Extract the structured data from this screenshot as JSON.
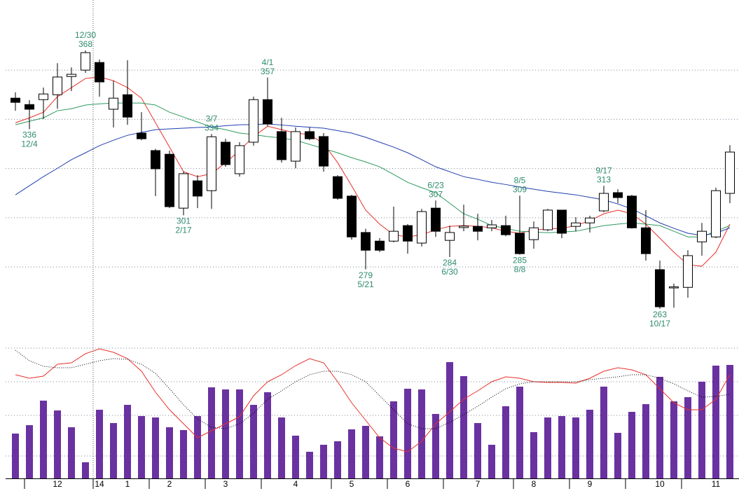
{
  "chart_data": {
    "type": "candlestick",
    "categories": [
      null,
      null,
      null,
      "12",
      null,
      null,
      "14",
      null,
      "1",
      null,
      null,
      "2",
      null,
      null,
      null,
      "3",
      null,
      null,
      null,
      null,
      "4",
      null,
      null,
      null,
      "5",
      null,
      null,
      null,
      "6",
      null,
      null,
      null,
      null,
      "7",
      null,
      null,
      null,
      "8",
      null,
      null,
      null,
      "9",
      null,
      null,
      null,
      null,
      "10",
      null,
      null,
      null,
      "11",
      null
    ],
    "open": [
      348.6,
      346.0,
      348.0,
      350.0,
      357.4,
      360.0,
      363.1,
      344.1,
      350.0,
      334.4,
      327.3,
      325.8,
      303.9,
      315.0,
      311.0,
      330.7,
      317.9,
      330.7,
      348.0,
      335.0,
      323.0,
      335.0,
      333.0,
      316.7,
      308.8,
      294.0,
      290.5,
      290.5,
      296.8,
      289.7,
      303.9,
      290.8,
      296.0,
      296.5,
      295.9,
      296.8,
      293.7,
      291.1,
      295.1,
      303.1,
      296.5,
      297.9,
      302.8,
      310.2,
      308.8,
      295.9,
      278.9,
      271.6,
      271.7,
      290.2,
      292.2,
      309.9
    ],
    "high": [
      351.0,
      347.8,
      352.9,
      362.8,
      361.1,
      368,
      364.3,
      355.7,
      364.0,
      342.9,
      328.0,
      327.3,
      318.7,
      317.3,
      334,
      332.1,
      330.7,
      349.2,
      357,
      340.6,
      336.7,
      336.7,
      334.4,
      317.3,
      309.3,
      295.5,
      291.7,
      304.5,
      297.4,
      303.6,
      307,
      296.8,
      305.3,
      301.6,
      299.1,
      300.8,
      309,
      298.5,
      303.6,
      303.1,
      300.2,
      300.8,
      313,
      311.6,
      309.3,
      303.1,
      282.6,
      273.2,
      286.8,
      297.9,
      312.2,
      329.5
    ],
    "low": [
      343.5,
      336,
      340.1,
      344.3,
      351.5,
      358.9,
      349.2,
      336.7,
      337.8,
      331.5,
      308.8,
      303.9,
      301,
      303.9,
      303.6,
      320.7,
      316.7,
      329.3,
      337.2,
      322.4,
      320.1,
      331.5,
      318.7,
      307.3,
      291.1,
      279,
      286.0,
      290.0,
      285.4,
      288.3,
      292.2,
      284,
      294.5,
      290.8,
      294.5,
      292.5,
      285,
      287.4,
      294.5,
      291.7,
      294.5,
      294.0,
      302.2,
      305.9,
      295.6,
      282.6,
      263,
      263.4,
      267.5,
      284.6,
      291.7,
      305.9
    ],
    "close": [
      346.9,
      344.1,
      350.3,
      357.2,
      358.3,
      367.1,
      355.2,
      348.6,
      340.9,
      332.1,
      319.9,
      304.5,
      317.9,
      308.8,
      332.9,
      321.6,
      329.3,
      348.0,
      338.1,
      323.6,
      335.0,
      332.1,
      321.0,
      307.9,
      292.2,
      286.8,
      286.8,
      294.5,
      290.5,
      302.5,
      294.5,
      294.0,
      296.6,
      294.5,
      297.1,
      293.1,
      285.4,
      295.9,
      303.1,
      293.7,
      297.9,
      299.9,
      309.9,
      308.2,
      295.9,
      285.4,
      263.8,
      271.9,
      284.6,
      294.5,
      311.0,
      326.7
    ],
    "up_color": "#ffffff",
    "down_color": "#000000",
    "ylim": [
      249,
      388.5
    ],
    "yticks": [
      280,
      300,
      320,
      340,
      360
    ],
    "grid": true,
    "moving_averages": [
      {
        "color": "#e8302a",
        "values": [
          338.6,
          340.6,
          342.9,
          349.2,
          352.9,
          356.6,
          357.2,
          355.7,
          352.9,
          348.6,
          338.6,
          328.7,
          318.7,
          316.7,
          317.9,
          322.4,
          327.3,
          333.0,
          337.2,
          335.8,
          334.4,
          333.8,
          330.1,
          322.4,
          313.0,
          303.1,
          297.4,
          293.1,
          292.2,
          293.1,
          295.1,
          296.5,
          296.8,
          296.5,
          295.9,
          294.5,
          293.7,
          295.1,
          295.4,
          295.7,
          296.8,
          298.8,
          301.6,
          303.1,
          301.6,
          297.4,
          291.7,
          286.0,
          280.9,
          280.3,
          286.0,
          297.4
        ]
      },
      {
        "color": "#2e9a5e",
        "values": [
          337.8,
          339.2,
          340.6,
          343.5,
          344.3,
          345.8,
          346.3,
          346.6,
          346.6,
          346.6,
          345.8,
          342.9,
          340.9,
          338.9,
          336.9,
          335.8,
          334.4,
          333.8,
          333.0,
          332.4,
          331.5,
          329.8,
          328.1,
          326.4,
          324.4,
          322.7,
          320.7,
          317.6,
          314.4,
          312.2,
          310.2,
          305.9,
          301.6,
          299.4,
          296.8,
          295.7,
          294.5,
          294.2,
          293.9,
          294.2,
          294.5,
          295.7,
          296.8,
          297.4,
          297.9,
          297.4,
          296.8,
          294.5,
          292.2,
          292.2,
          294.5,
          296.8
        ]
      },
      {
        "color": "#1f3fb0",
        "values": [
          309.3,
          313.0,
          316.7,
          320.1,
          323.6,
          326.4,
          329.3,
          331.5,
          333.5,
          334.7,
          335.8,
          336.1,
          336.4,
          336.7,
          336.9,
          337.4,
          337.8,
          337.9,
          338.1,
          337.7,
          337.2,
          336.8,
          336.4,
          335.4,
          334.4,
          332.7,
          330.7,
          328.7,
          326.4,
          323.6,
          320.7,
          318.7,
          316.7,
          315.6,
          314.4,
          313.5,
          312.5,
          311.6,
          310.7,
          310.0,
          309.3,
          308.3,
          307.3,
          305.6,
          303.6,
          300.8,
          297.9,
          295.7,
          293.7,
          292.8,
          293.7,
          295.9
        ]
      }
    ],
    "annotations": [
      {
        "index": 1,
        "date": "12/4",
        "price": 336
      },
      {
        "index": 5,
        "date": "12/30",
        "price": 368
      },
      {
        "index": 12,
        "date": "2/17",
        "price": 301
      },
      {
        "index": 14,
        "date": "3/7",
        "price": 334
      },
      {
        "index": 18,
        "date": "4/1",
        "price": 357
      },
      {
        "index": 25,
        "date": "5/21",
        "price": 279
      },
      {
        "index": 30,
        "date": "6/23",
        "price": 307
      },
      {
        "index": 31,
        "date": "6/30",
        "price": 284
      },
      {
        "index": 36,
        "date": "8/5",
        "price": 309
      },
      {
        "index": 36,
        "date": "8/8",
        "price": 285
      },
      {
        "index": 42,
        "date": "9/17",
        "price": 313
      },
      {
        "index": 46,
        "date": "10/17",
        "price": 263
      }
    ],
    "annotation_color": "#2e8b6e",
    "volume": {
      "color": "#6a32a0",
      "ylim": [
        0,
        188
      ],
      "values": [
        64,
        76,
        111,
        97,
        73,
        23,
        98,
        79,
        105,
        89,
        87,
        73,
        69,
        89,
        130,
        127,
        127,
        105,
        123,
        87,
        61,
        38,
        48,
        53,
        70,
        75,
        60,
        110,
        128,
        127,
        92,
        166,
        146,
        79,
        48,
        103,
        131,
        66,
        87,
        89,
        87,
        98,
        131,
        65,
        95,
        106,
        145,
        110,
        116,
        138,
        161,
        162
      ]
    },
    "oscillators": [
      {
        "color": "#e8302a",
        "dashed": false,
        "values": [
          148,
          143,
          146,
          163,
          165,
          178,
          185,
          180,
          171,
          153,
          123,
          98,
          78,
          58,
          68,
          78,
          88,
          118,
          138,
          148,
          161,
          171,
          165,
          138,
          108,
          83,
          58,
          43,
          38,
          53,
          78,
          95,
          113,
          125,
          138,
          145,
          143,
          138,
          137,
          137,
          136,
          143,
          153,
          158,
          155,
          148,
          128,
          108,
          98,
          98,
          113,
          148
        ]
      },
      {
        "color": "#000000",
        "dashed": true,
        "values": [
          183,
          168,
          160,
          158,
          158,
          163,
          168,
          171,
          170,
          163,
          150,
          128,
          105,
          85,
          73,
          71,
          78,
          93,
          113,
          125,
          138,
          148,
          153,
          153,
          148,
          138,
          118,
          98,
          78,
          71,
          71,
          80,
          91,
          103,
          116,
          128,
          135,
          138,
          138,
          138,
          138,
          141,
          143,
          145,
          148,
          148,
          143,
          135,
          125,
          116,
          117,
          120
        ]
      }
    ]
  }
}
